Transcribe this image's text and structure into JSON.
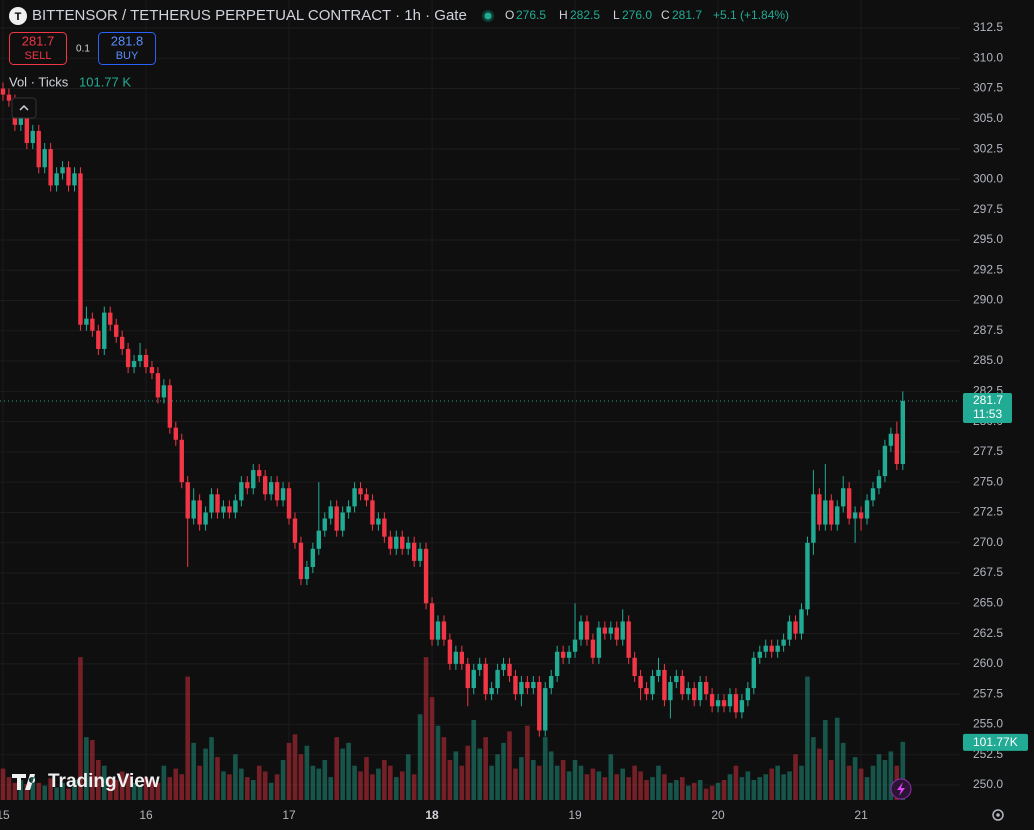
{
  "chart_data": {
    "type": "candlestick",
    "title": "BITTENSOR / TETHERUS PERPETUAL CONTRACT · 1h · Gate",
    "header": {
      "o_label": "O",
      "o": "276.5",
      "h_label": "H",
      "h": "282.5",
      "l_label": "L",
      "l": "276.0",
      "c_label": "C",
      "c": "281.7",
      "change": "+5.1 (+1.84%)"
    },
    "trade": {
      "sell_price": "281.7",
      "sell": "SELL",
      "spread": "0.1",
      "buy_price": "281.8",
      "buy": "BUY"
    },
    "volume_legend": {
      "label": "Vol · Ticks",
      "value": "101.77 K"
    },
    "price_tag": {
      "price": "281.7",
      "countdown": "11:53"
    },
    "volume_tag": "101.77K",
    "watermark": "TradingView",
    "up_color": "#22ab94",
    "down_color": "#f23645",
    "grid": true,
    "xlim": [
      -0.5,
      160.6
    ],
    "xticks": [
      {
        "value": 0,
        "label": "15"
      },
      {
        "value": 24,
        "label": "16"
      },
      {
        "value": 48,
        "label": "17"
      },
      {
        "value": 72,
        "label": "18"
      },
      {
        "value": 96,
        "label": "19"
      },
      {
        "value": 120,
        "label": "20"
      },
      {
        "value": 144,
        "label": "21"
      }
    ],
    "ylim": [
      248.76,
      314.81
    ],
    "yticks": [
      {
        "value": 250,
        "label": "250.0"
      },
      252.5,
      {
        "value": 255,
        "label": "255.0"
      },
      257.5,
      {
        "value": 260,
        "label": "260.0"
      },
      262.5,
      {
        "value": 265,
        "label": "265.0"
      },
      267.5,
      {
        "value": 270,
        "label": "270.0"
      },
      272.5,
      {
        "value": 275,
        "label": "275.0"
      },
      277.5,
      {
        "value": 280,
        "label": "280.0"
      },
      282.5,
      {
        "value": 285,
        "label": "285.0"
      },
      287.5,
      {
        "value": 290,
        "label": "290.0"
      },
      292.5,
      {
        "value": 295,
        "label": "295.0"
      },
      297.5,
      {
        "value": 300,
        "label": "300.0"
      },
      302.5,
      {
        "value": 305,
        "label": "305.0"
      },
      307.5,
      {
        "value": 310,
        "label": "310.0"
      },
      312.5
    ],
    "last_price": 281.7,
    "volume_lim": [
      0,
      420
    ],
    "candles": [
      [
        307.5,
        308.0,
        306.5,
        307.0
      ],
      [
        307.0,
        307.5,
        306.0,
        306.5
      ],
      [
        306.5,
        307.0,
        304.0,
        304.5
      ],
      [
        304.5,
        306.0,
        304.0,
        305.5
      ],
      [
        305.5,
        306.0,
        302.5,
        303.0
      ],
      [
        303.0,
        304.5,
        302.5,
        304.0
      ],
      [
        304.0,
        304.5,
        300.5,
        301.0
      ],
      [
        301.0,
        303.0,
        300.5,
        302.5
      ],
      [
        302.5,
        303.0,
        299.0,
        299.5
      ],
      [
        299.5,
        301.0,
        299.0,
        300.5
      ],
      [
        300.5,
        301.5,
        300.0,
        301.0
      ],
      [
        301.0,
        301.5,
        299.0,
        299.5
      ],
      [
        299.5,
        301.0,
        299.0,
        300.5
      ],
      [
        300.5,
        301.0,
        287.5,
        288.0
      ],
      [
        288.0,
        289.5,
        287.5,
        288.5
      ],
      [
        288.5,
        289.0,
        287.0,
        287.5
      ],
      [
        287.5,
        288.0,
        285.5,
        286.0
      ],
      [
        286.0,
        289.5,
        285.5,
        289.0
      ],
      [
        289.0,
        289.5,
        287.5,
        288.0
      ],
      [
        288.0,
        288.5,
        286.5,
        287.0
      ],
      [
        287.0,
        287.5,
        285.5,
        286.0
      ],
      [
        286.0,
        286.5,
        284.0,
        284.5
      ],
      [
        284.5,
        285.5,
        284.0,
        285.0
      ],
      [
        285.0,
        286.5,
        284.5,
        285.5
      ],
      [
        285.5,
        286.0,
        284.0,
        284.5
      ],
      [
        284.5,
        285.0,
        283.5,
        284.0
      ],
      [
        284.0,
        284.5,
        281.5,
        282.0
      ],
      [
        282.0,
        283.5,
        281.5,
        283.0
      ],
      [
        283.0,
        283.5,
        279.0,
        279.5
      ],
      [
        279.5,
        280.0,
        278.0,
        278.5
      ],
      [
        278.5,
        279.0,
        274.5,
        275.0
      ],
      [
        275.0,
        275.5,
        268.0,
        272.0
      ],
      [
        272.0,
        274.5,
        271.5,
        273.5
      ],
      [
        273.5,
        274.0,
        271.0,
        271.5
      ],
      [
        271.5,
        273.0,
        271.0,
        272.5
      ],
      [
        272.5,
        274.5,
        272.0,
        274.0
      ],
      [
        274.0,
        274.5,
        272.0,
        272.5
      ],
      [
        272.5,
        273.5,
        272.0,
        273.0
      ],
      [
        273.0,
        273.5,
        272.0,
        272.5
      ],
      [
        272.5,
        274.0,
        272.0,
        273.5
      ],
      [
        273.5,
        275.5,
        273.0,
        275.0
      ],
      [
        275.0,
        275.5,
        274.0,
        274.5
      ],
      [
        274.5,
        276.5,
        274.0,
        276.0
      ],
      [
        276.0,
        276.5,
        275.0,
        275.5
      ],
      [
        275.5,
        276.0,
        273.5,
        274.0
      ],
      [
        274.0,
        275.5,
        273.5,
        275.0
      ],
      [
        275.0,
        275.5,
        273.0,
        273.5
      ],
      [
        273.5,
        275.0,
        273.0,
        274.5
      ],
      [
        274.5,
        275.0,
        271.5,
        272.0
      ],
      [
        272.0,
        272.5,
        269.5,
        270.0
      ],
      [
        270.0,
        270.5,
        266.5,
        267.0
      ],
      [
        267.0,
        268.5,
        266.5,
        268.0
      ],
      [
        268.0,
        270.0,
        267.5,
        269.5
      ],
      [
        269.5,
        275.0,
        269.0,
        271.0
      ],
      [
        271.0,
        272.5,
        270.5,
        272.0
      ],
      [
        272.0,
        273.5,
        271.5,
        273.0
      ],
      [
        273.0,
        273.5,
        270.5,
        271.0
      ],
      [
        271.0,
        273.0,
        270.5,
        272.5
      ],
      [
        272.5,
        273.5,
        272.0,
        273.0
      ],
      [
        273.0,
        275.0,
        272.5,
        274.5
      ],
      [
        274.5,
        275.0,
        273.5,
        274.0
      ],
      [
        274.0,
        274.5,
        273.0,
        273.5
      ],
      [
        273.5,
        274.0,
        271.0,
        271.5
      ],
      [
        271.5,
        272.5,
        271.0,
        272.0
      ],
      [
        272.0,
        272.5,
        270.0,
        270.5
      ],
      [
        270.5,
        271.0,
        269.0,
        269.5
      ],
      [
        269.5,
        271.0,
        269.0,
        270.5
      ],
      [
        270.5,
        271.0,
        269.0,
        269.5
      ],
      [
        269.5,
        270.5,
        269.0,
        270.0
      ],
      [
        270.0,
        270.5,
        268.0,
        268.5
      ],
      [
        268.5,
        270.0,
        268.0,
        269.5
      ],
      [
        269.5,
        270.0,
        264.5,
        265.0
      ],
      [
        265.0,
        265.5,
        261.5,
        262.0
      ],
      [
        262.0,
        264.0,
        261.5,
        263.5
      ],
      [
        263.5,
        264.0,
        261.5,
        262.0
      ],
      [
        262.0,
        262.5,
        259.5,
        260.0
      ],
      [
        260.0,
        261.5,
        259.5,
        261.0
      ],
      [
        261.0,
        261.5,
        259.5,
        260.0
      ],
      [
        260.0,
        260.5,
        256.5,
        258.0
      ],
      [
        258.0,
        260.0,
        257.5,
        259.5
      ],
      [
        259.5,
        260.5,
        259.0,
        260.0
      ],
      [
        260.0,
        260.5,
        257.0,
        257.5
      ],
      [
        257.5,
        258.5,
        257.0,
        258.0
      ],
      [
        258.0,
        260.0,
        257.5,
        259.5
      ],
      [
        259.5,
        260.5,
        259.0,
        260.0
      ],
      [
        260.0,
        260.5,
        258.5,
        259.0
      ],
      [
        259.0,
        259.5,
        257.0,
        257.5
      ],
      [
        257.5,
        259.0,
        256.5,
        258.5
      ],
      [
        258.5,
        259.0,
        257.5,
        258.0
      ],
      [
        258.0,
        259.0,
        257.5,
        258.5
      ],
      [
        258.5,
        259.0,
        254.0,
        254.5
      ],
      [
        254.5,
        258.5,
        254.0,
        258.0
      ],
      [
        258.0,
        259.5,
        257.5,
        259.0
      ],
      [
        259.0,
        261.5,
        258.5,
        261.0
      ],
      [
        261.0,
        261.5,
        260.0,
        260.5
      ],
      [
        260.5,
        261.5,
        260.0,
        261.0
      ],
      [
        261.0,
        265.0,
        260.5,
        262.0
      ],
      [
        262.0,
        264.0,
        261.5,
        263.5
      ],
      [
        263.5,
        264.0,
        261.5,
        262.0
      ],
      [
        262.0,
        262.5,
        260.0,
        260.5
      ],
      [
        260.5,
        263.5,
        260.0,
        263.0
      ],
      [
        263.0,
        263.5,
        262.0,
        262.5
      ],
      [
        262.5,
        263.5,
        262.0,
        263.0
      ],
      [
        263.0,
        263.5,
        261.5,
        262.0
      ],
      [
        262.0,
        264.5,
        261.5,
        263.5
      ],
      [
        263.5,
        264.0,
        260.0,
        260.5
      ],
      [
        260.5,
        261.0,
        258.5,
        259.0
      ],
      [
        259.0,
        259.5,
        257.0,
        258.0
      ],
      [
        258.0,
        258.5,
        257.0,
        257.5
      ],
      [
        257.5,
        259.5,
        257.0,
        259.0
      ],
      [
        259.0,
        260.5,
        258.5,
        259.5
      ],
      [
        259.5,
        260.0,
        256.5,
        257.0
      ],
      [
        257.0,
        259.0,
        255.5,
        258.5
      ],
      [
        258.5,
        259.5,
        258.0,
        259.0
      ],
      [
        259.0,
        259.5,
        257.0,
        257.5
      ],
      [
        257.5,
        258.5,
        257.0,
        258.0
      ],
      [
        258.0,
        258.5,
        256.5,
        257.0
      ],
      [
        257.0,
        259.0,
        256.5,
        258.5
      ],
      [
        258.5,
        259.0,
        257.0,
        257.5
      ],
      [
        257.5,
        258.0,
        256.0,
        256.5
      ],
      [
        256.5,
        257.5,
        256.0,
        257.0
      ],
      [
        257.0,
        257.5,
        256.0,
        256.5
      ],
      [
        256.5,
        258.0,
        256.0,
        257.5
      ],
      [
        257.5,
        258.0,
        255.5,
        256.0
      ],
      [
        256.0,
        257.5,
        255.5,
        257.0
      ],
      [
        257.0,
        258.5,
        256.5,
        258.0
      ],
      [
        258.0,
        261.0,
        257.5,
        260.5
      ],
      [
        260.5,
        261.5,
        260.0,
        261.0
      ],
      [
        261.0,
        262.0,
        260.5,
        261.5
      ],
      [
        261.5,
        262.0,
        260.5,
        261.0
      ],
      [
        261.0,
        262.0,
        260.5,
        261.5
      ],
      [
        261.5,
        262.5,
        261.0,
        262.0
      ],
      [
        262.0,
        264.0,
        261.5,
        263.5
      ],
      [
        263.5,
        264.0,
        262.0,
        262.5
      ],
      [
        262.5,
        265.0,
        262.0,
        264.5
      ],
      [
        264.5,
        270.5,
        264.0,
        270.0
      ],
      [
        270.0,
        276.0,
        269.0,
        274.0
      ],
      [
        274.0,
        274.5,
        271.0,
        271.5
      ],
      [
        271.5,
        276.5,
        271.0,
        273.5
      ],
      [
        273.5,
        274.0,
        271.0,
        271.5
      ],
      [
        271.5,
        273.5,
        271.0,
        273.0
      ],
      [
        273.0,
        275.5,
        272.5,
        274.5
      ],
      [
        274.5,
        275.0,
        271.5,
        272.0
      ],
      [
        272.0,
        273.0,
        270.0,
        272.5
      ],
      [
        272.5,
        273.0,
        271.0,
        272.0
      ],
      [
        272.0,
        274.0,
        271.5,
        273.5
      ],
      [
        273.5,
        275.0,
        273.0,
        274.5
      ],
      [
        274.5,
        276.0,
        274.0,
        275.5
      ],
      [
        275.5,
        278.5,
        275.0,
        278.0
      ],
      [
        278.0,
        279.5,
        277.5,
        279.0
      ],
      [
        279.0,
        280.0,
        276.0,
        276.5
      ],
      [
        276.5,
        282.5,
        276.0,
        281.7
      ]
    ],
    "volume": [
      55,
      40,
      30,
      35,
      28,
      45,
      30,
      25,
      38,
      22,
      30,
      20,
      35,
      250,
      110,
      105,
      70,
      60,
      40,
      35,
      50,
      45,
      30,
      25,
      40,
      35,
      30,
      60,
      40,
      55,
      45,
      216,
      100,
      60,
      90,
      110,
      75,
      50,
      45,
      80,
      55,
      40,
      35,
      60,
      50,
      30,
      45,
      70,
      100,
      115,
      80,
      95,
      60,
      55,
      70,
      40,
      110,
      90,
      100,
      60,
      50,
      75,
      45,
      55,
      70,
      60,
      40,
      50,
      80,
      45,
      150,
      250,
      180,
      130,
      110,
      70,
      85,
      60,
      95,
      140,
      90,
      110,
      60,
      80,
      100,
      120,
      55,
      75,
      130,
      70,
      60,
      110,
      85,
      60,
      70,
      50,
      70,
      60,
      45,
      55,
      50,
      40,
      80,
      45,
      55,
      40,
      60,
      50,
      35,
      40,
      60,
      45,
      30,
      35,
      40,
      25,
      30,
      35,
      20,
      25,
      30,
      35,
      45,
      60,
      40,
      50,
      35,
      40,
      45,
      55,
      60,
      45,
      50,
      80,
      60,
      216,
      110,
      90,
      140,
      70,
      144,
      100,
      60,
      75,
      55,
      40,
      60,
      80,
      70,
      85,
      60,
      101.77
    ]
  }
}
